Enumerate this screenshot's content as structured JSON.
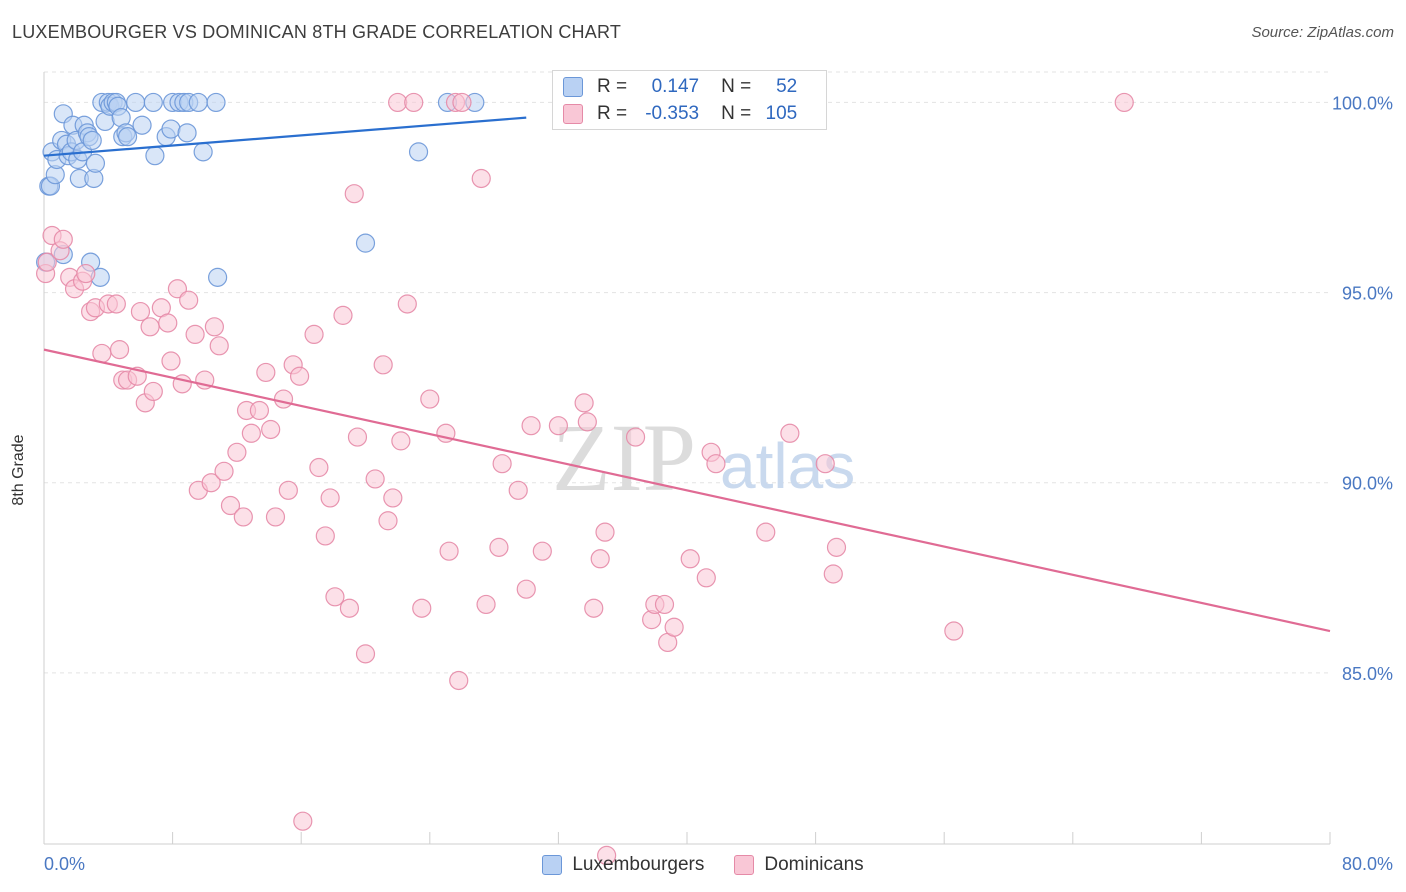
{
  "title": "LUXEMBOURGER VS DOMINICAN 8TH GRADE CORRELATION CHART",
  "source": "Source: ZipAtlas.com",
  "watermark": {
    "zip": "ZIP",
    "atlas": "atlas"
  },
  "legend": {
    "r_label": "R =",
    "n_label": "N =",
    "rows": [
      {
        "r": "0.147",
        "n": "52",
        "color": "#6b97d8"
      },
      {
        "r": "-0.353",
        "n": "105",
        "color": "#e58aa7"
      }
    ]
  },
  "chart_data": {
    "type": "scatter",
    "title": "LUXEMBOURGER VS DOMINICAN 8TH GRADE CORRELATION CHART",
    "xlabel": "",
    "ylabel": "8th Grade",
    "xlim": [
      0,
      80
    ],
    "ylim": [
      80.5,
      100.8
    ],
    "x_tick_labels": [
      "0.0%",
      "80.0%"
    ],
    "y_ticks": [
      85,
      90,
      95,
      100
    ],
    "y_tick_labels": [
      "85.0%",
      "90.0%",
      "95.0%",
      "100.0%"
    ],
    "grid": true,
    "legend_position": "top-center",
    "series": [
      {
        "name": "Luxembourgers",
        "color": "#6b97d8",
        "fill": "#b9d1f3",
        "trend": {
          "x": [
            0,
            30
          ],
          "y": [
            98.6,
            99.6
          ]
        },
        "points": [
          [
            0.1,
            95.8
          ],
          [
            0.3,
            97.8
          ],
          [
            0.4,
            97.8
          ],
          [
            0.5,
            98.7
          ],
          [
            0.7,
            98.1
          ],
          [
            0.8,
            98.5
          ],
          [
            1.1,
            99.0
          ],
          [
            1.2,
            99.7
          ],
          [
            1.4,
            98.9
          ],
          [
            1.5,
            98.6
          ],
          [
            1.7,
            98.7
          ],
          [
            1.8,
            99.4
          ],
          [
            2.0,
            99.0
          ],
          [
            2.1,
            98.5
          ],
          [
            2.2,
            98.0
          ],
          [
            2.4,
            98.7
          ],
          [
            2.5,
            99.4
          ],
          [
            2.7,
            99.2
          ],
          [
            2.8,
            99.1
          ],
          [
            3.0,
            99.0
          ],
          [
            3.1,
            98.0
          ],
          [
            3.2,
            98.4
          ],
          [
            1.2,
            96.0
          ],
          [
            2.9,
            95.8
          ],
          [
            3.5,
            95.4
          ],
          [
            3.6,
            100.0
          ],
          [
            3.8,
            99.5
          ],
          [
            4.0,
            100.0
          ],
          [
            4.1,
            99.9
          ],
          [
            4.3,
            100.0
          ],
          [
            4.5,
            100.0
          ],
          [
            4.6,
            99.9
          ],
          [
            4.8,
            99.6
          ],
          [
            4.9,
            99.1
          ],
          [
            5.1,
            99.2
          ],
          [
            5.2,
            99.1
          ],
          [
            5.7,
            100.0
          ],
          [
            6.1,
            99.4
          ],
          [
            6.8,
            100.0
          ],
          [
            6.9,
            98.6
          ],
          [
            7.6,
            99.1
          ],
          [
            7.9,
            99.3
          ],
          [
            8.0,
            100.0
          ],
          [
            8.4,
            100.0
          ],
          [
            8.7,
            100.0
          ],
          [
            8.9,
            99.2
          ],
          [
            9.0,
            100.0
          ],
          [
            9.6,
            100.0
          ],
          [
            9.9,
            98.7
          ],
          [
            10.7,
            100.0
          ],
          [
            10.8,
            95.4
          ],
          [
            20.0,
            96.3
          ],
          [
            23.3,
            98.7
          ],
          [
            25.1,
            100.0
          ],
          [
            26.8,
            100.0
          ]
        ]
      },
      {
        "name": "Dominicans",
        "color": "#e58aa7",
        "fill": "#f9c7d6",
        "trend": {
          "x": [
            0,
            80
          ],
          "y": [
            93.5,
            86.1
          ]
        },
        "points": [
          [
            0.1,
            95.5
          ],
          [
            0.2,
            95.8
          ],
          [
            0.5,
            96.5
          ],
          [
            1.0,
            96.1
          ],
          [
            1.2,
            96.4
          ],
          [
            1.6,
            95.4
          ],
          [
            1.9,
            95.1
          ],
          [
            2.4,
            95.3
          ],
          [
            2.6,
            95.5
          ],
          [
            2.9,
            94.5
          ],
          [
            3.2,
            94.6
          ],
          [
            3.6,
            93.4
          ],
          [
            4.0,
            94.7
          ],
          [
            4.5,
            94.7
          ],
          [
            4.7,
            93.5
          ],
          [
            4.9,
            92.7
          ],
          [
            5.2,
            92.7
          ],
          [
            5.8,
            92.8
          ],
          [
            6.0,
            94.5
          ],
          [
            6.3,
            92.1
          ],
          [
            6.6,
            94.1
          ],
          [
            6.8,
            92.4
          ],
          [
            7.3,
            94.6
          ],
          [
            7.7,
            94.2
          ],
          [
            7.9,
            93.2
          ],
          [
            8.3,
            95.1
          ],
          [
            8.6,
            92.6
          ],
          [
            9.0,
            94.8
          ],
          [
            9.4,
            93.9
          ],
          [
            9.6,
            89.8
          ],
          [
            10.0,
            92.7
          ],
          [
            10.4,
            90.0
          ],
          [
            10.6,
            94.1
          ],
          [
            10.9,
            93.6
          ],
          [
            11.2,
            90.3
          ],
          [
            11.6,
            89.4
          ],
          [
            12.0,
            90.8
          ],
          [
            12.4,
            89.1
          ],
          [
            12.6,
            91.9
          ],
          [
            12.9,
            91.3
          ],
          [
            13.4,
            91.9
          ],
          [
            13.8,
            92.9
          ],
          [
            14.1,
            91.4
          ],
          [
            14.4,
            89.1
          ],
          [
            14.9,
            92.2
          ],
          [
            15.2,
            89.8
          ],
          [
            15.5,
            93.1
          ],
          [
            15.9,
            92.8
          ],
          [
            16.8,
            93.9
          ],
          [
            17.1,
            90.4
          ],
          [
            17.5,
            88.6
          ],
          [
            17.8,
            89.6
          ],
          [
            18.1,
            87.0
          ],
          [
            18.6,
            94.4
          ],
          [
            19.0,
            86.7
          ],
          [
            19.3,
            97.6
          ],
          [
            19.5,
            91.2
          ],
          [
            20.0,
            85.5
          ],
          [
            20.6,
            90.1
          ],
          [
            21.1,
            93.1
          ],
          [
            21.4,
            89.0
          ],
          [
            21.7,
            89.6
          ],
          [
            22.0,
            100.0
          ],
          [
            22.2,
            91.1
          ],
          [
            22.6,
            94.7
          ],
          [
            23.0,
            100.0
          ],
          [
            23.5,
            86.7
          ],
          [
            24.0,
            92.2
          ],
          [
            25.0,
            91.3
          ],
          [
            25.6,
            100.0
          ],
          [
            25.2,
            88.2
          ],
          [
            25.8,
            84.8
          ],
          [
            26.0,
            100.0
          ],
          [
            27.2,
            98.0
          ],
          [
            27.5,
            86.8
          ],
          [
            28.3,
            88.3
          ],
          [
            28.5,
            90.5
          ],
          [
            29.5,
            89.8
          ],
          [
            30.0,
            87.2
          ],
          [
            30.3,
            91.5
          ],
          [
            31.0,
            88.2
          ],
          [
            32.0,
            91.5
          ],
          [
            32.3,
            100.0
          ],
          [
            33.6,
            92.1
          ],
          [
            33.8,
            91.6
          ],
          [
            34.2,
            86.7
          ],
          [
            34.6,
            88.0
          ],
          [
            34.9,
            88.7
          ],
          [
            35.0,
            80.2
          ],
          [
            36.8,
            91.2
          ],
          [
            37.8,
            86.4
          ],
          [
            38.0,
            86.8
          ],
          [
            38.6,
            86.8
          ],
          [
            38.8,
            85.8
          ],
          [
            39.2,
            86.2
          ],
          [
            40.2,
            88.0
          ],
          [
            41.2,
            87.5
          ],
          [
            41.5,
            90.8
          ],
          [
            41.8,
            90.5
          ],
          [
            44.9,
            88.7
          ],
          [
            46.4,
            91.3
          ],
          [
            48.6,
            90.5
          ],
          [
            49.1,
            87.6
          ],
          [
            49.3,
            88.3
          ],
          [
            56.6,
            86.1
          ],
          [
            67.2,
            100.0
          ],
          [
            16.1,
            81.1
          ]
        ]
      }
    ]
  }
}
